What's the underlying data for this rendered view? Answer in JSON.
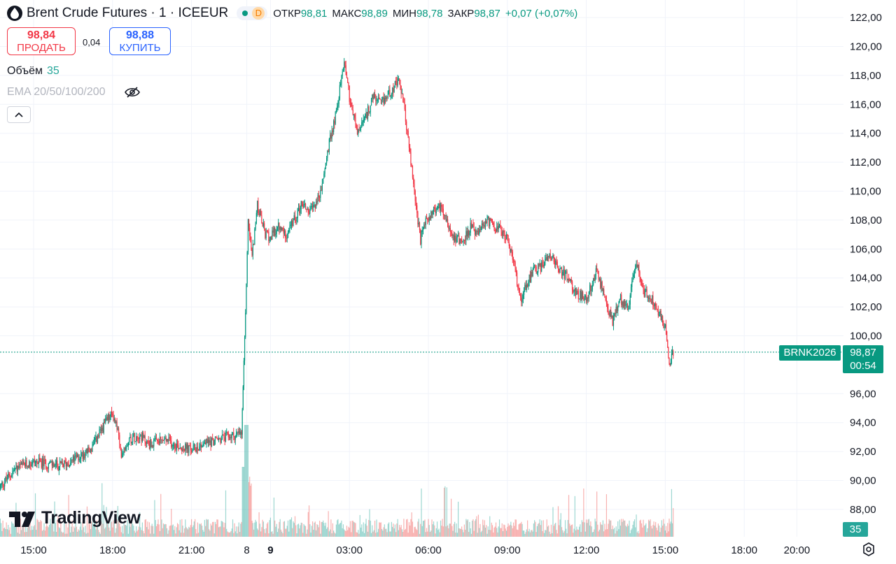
{
  "header": {
    "title": "Brent Crude Futures · 1 · ICEEUR",
    "status_badge": "D",
    "open_label": "ОТКР",
    "open_value": "98,81",
    "high_label": "МАКС",
    "high_value": "98,89",
    "low_label": "МИН",
    "low_value": "98,78",
    "close_label": "ЗАКР",
    "close_value": "98,87",
    "change": "+0,07 (+0,07%)"
  },
  "trade": {
    "sell_price": "98,84",
    "sell_label": "ПРОДАТЬ",
    "spread": "0,04",
    "buy_price": "98,88",
    "buy_label": "КУПИТЬ"
  },
  "indicators": {
    "volume_label": "Объём",
    "volume_value": "35",
    "ema_label": "EMA 20/50/100/200"
  },
  "branding": {
    "logo_text": "TradingView"
  },
  "price_scale": {
    "symbol_tag": "BRNK2026",
    "last_price": "98,87",
    "countdown": "00:54",
    "volume_tag": "35"
  },
  "colors": {
    "up": "#089981",
    "down": "#f23645",
    "vol_up": "#26a69a",
    "vol_down": "#ef5350",
    "grid": "#f0f3fa"
  },
  "icons": [
    "symbol-drop-icon",
    "eye-crossed-icon",
    "chevron-up-icon",
    "settings-icon"
  ],
  "chart_data": {
    "type": "candlestick",
    "title": "Brent Crude Futures · 1 · ICEEUR",
    "y_ticks": [
      "122,00",
      "120,00",
      "118,00",
      "116,00",
      "114,00",
      "112,00",
      "110,00",
      "108,00",
      "106,00",
      "104,00",
      "102,00",
      "100,00",
      "96,00",
      "94,00",
      "92,00",
      "90,00",
      "88,00"
    ],
    "ylim": [
      86.5,
      123
    ],
    "x_ticks": [
      {
        "label": "15:00",
        "t": 15.0,
        "bold": false
      },
      {
        "label": "18:00",
        "t": 18.0,
        "bold": false
      },
      {
        "label": "21:00",
        "t": 21.0,
        "bold": false
      },
      {
        "label": "8",
        "t": 23.1,
        "bold": false
      },
      {
        "label": "9",
        "t": 24.0,
        "bold": true
      },
      {
        "label": "03:00",
        "t": 27.0,
        "bold": false
      },
      {
        "label": "06:00",
        "t": 30.0,
        "bold": false
      },
      {
        "label": "09:00",
        "t": 33.0,
        "bold": false
      },
      {
        "label": "12:00",
        "t": 36.0,
        "bold": false
      },
      {
        "label": "15:00",
        "t": 39.0,
        "bold": false
      },
      {
        "label": "18:00",
        "t": 42.0,
        "bold": false
      },
      {
        "label": "20:00",
        "t": 44.0,
        "bold": false
      }
    ],
    "price_path": [
      [
        13.7,
        89.5
      ],
      [
        14.3,
        90.8
      ],
      [
        15.0,
        91.3
      ],
      [
        16.0,
        91.0
      ],
      [
        16.5,
        91.4
      ],
      [
        17.2,
        92.2
      ],
      [
        17.8,
        94.2
      ],
      [
        18.0,
        94.6
      ],
      [
        18.2,
        93.5
      ],
      [
        18.3,
        91.8
      ],
      [
        18.6,
        92.8
      ],
      [
        19.0,
        93.2
      ],
      [
        19.4,
        92.5
      ],
      [
        20.0,
        92.8
      ],
      [
        20.5,
        92.4
      ],
      [
        21.0,
        92.1
      ],
      [
        21.5,
        92.6
      ],
      [
        22.0,
        92.8
      ],
      [
        22.3,
        93.0
      ],
      [
        22.9,
        93.2
      ],
      [
        23.05,
        101.5
      ],
      [
        23.15,
        108.0
      ],
      [
        23.3,
        105.5
      ],
      [
        23.5,
        109.0
      ],
      [
        23.8,
        107.0
      ],
      [
        24.0,
        106.8
      ],
      [
        24.3,
        107.5
      ],
      [
        24.6,
        107.0
      ],
      [
        24.9,
        108.0
      ],
      [
        25.2,
        109.2
      ],
      [
        25.5,
        108.5
      ],
      [
        25.9,
        109.8
      ],
      [
        26.2,
        113.0
      ],
      [
        26.5,
        115.5
      ],
      [
        26.8,
        119.0
      ],
      [
        26.9,
        118.0
      ],
      [
        27.0,
        116.5
      ],
      [
        27.3,
        114.0
      ],
      [
        27.6,
        115.0
      ],
      [
        27.9,
        116.5
      ],
      [
        28.2,
        116.0
      ],
      [
        28.5,
        116.8
      ],
      [
        28.9,
        117.6
      ],
      [
        29.1,
        115.5
      ],
      [
        29.3,
        112.5
      ],
      [
        29.5,
        109.5
      ],
      [
        29.7,
        106.5
      ],
      [
        29.8,
        107.5
      ],
      [
        30.1,
        108.5
      ],
      [
        30.5,
        109.0
      ],
      [
        30.9,
        107.0
      ],
      [
        31.3,
        106.5
      ],
      [
        31.6,
        107.5
      ],
      [
        31.9,
        107.0
      ],
      [
        32.2,
        108.0
      ],
      [
        32.6,
        107.5
      ],
      [
        33.0,
        106.8
      ],
      [
        33.3,
        104.5
      ],
      [
        33.5,
        102.5
      ],
      [
        33.7,
        103.5
      ],
      [
        34.0,
        104.5
      ],
      [
        34.3,
        104.8
      ],
      [
        34.6,
        105.8
      ],
      [
        34.9,
        104.8
      ],
      [
        35.3,
        104.0
      ],
      [
        35.6,
        103.0
      ],
      [
        36.0,
        102.5
      ],
      [
        36.4,
        104.5
      ],
      [
        36.7,
        102.5
      ],
      [
        37.0,
        101.0
      ],
      [
        37.3,
        102.5
      ],
      [
        37.6,
        102.0
      ],
      [
        37.9,
        105.2
      ],
      [
        38.2,
        103.0
      ],
      [
        38.5,
        102.5
      ],
      [
        38.8,
        101.5
      ],
      [
        39.0,
        100.5
      ],
      [
        39.15,
        98.2
      ],
      [
        39.3,
        98.87
      ]
    ],
    "last_price": 98.87,
    "volume_last": 35
  }
}
